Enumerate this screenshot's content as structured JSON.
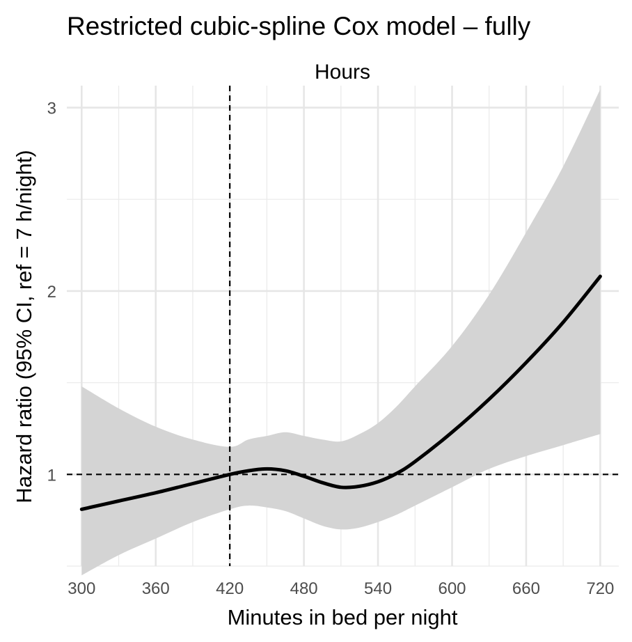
{
  "chart_data": {
    "type": "line",
    "title": "Restricted cubic-spline Cox model – fully",
    "subtitle": "Hours",
    "xlabel": "Minutes in bed per night",
    "ylabel": "Hazard ratio (95% CI, ref = 7 h/night)",
    "xlim": [
      288,
      735
    ],
    "ylim": [
      0.5,
      3.12
    ],
    "x_ticks": [
      300,
      360,
      420,
      480,
      540,
      600,
      660,
      720
    ],
    "y_ticks": [
      1,
      2,
      3
    ],
    "y_tick_labels": [
      "1",
      "2",
      "3"
    ],
    "x_tick_labels": [
      "300",
      "360",
      "420",
      "480",
      "540",
      "600",
      "660",
      "720"
    ],
    "reference_lines": {
      "x": 420,
      "y": 1
    },
    "grid": true,
    "series": [
      {
        "x": [
          300,
          330,
          360,
          390,
          420,
          435,
          450,
          465,
          480,
          495,
          510,
          525,
          540,
          555,
          570,
          600,
          630,
          660,
          690,
          720
        ],
        "y": [
          0.81,
          0.855,
          0.9,
          0.95,
          1.0,
          1.02,
          1.03,
          1.02,
          0.99,
          0.955,
          0.93,
          0.935,
          0.96,
          1.005,
          1.07,
          1.23,
          1.41,
          1.61,
          1.83,
          2.08
        ],
        "lower": [
          0.45,
          0.56,
          0.65,
          0.74,
          0.81,
          0.83,
          0.82,
          0.8,
          0.76,
          0.72,
          0.7,
          0.71,
          0.74,
          0.78,
          0.83,
          0.93,
          1.03,
          1.1,
          1.16,
          1.22
        ],
        "upper": [
          1.48,
          1.36,
          1.26,
          1.19,
          1.15,
          1.19,
          1.21,
          1.23,
          1.21,
          1.19,
          1.18,
          1.22,
          1.28,
          1.37,
          1.48,
          1.7,
          1.98,
          2.32,
          2.68,
          3.1
        ]
      }
    ]
  }
}
